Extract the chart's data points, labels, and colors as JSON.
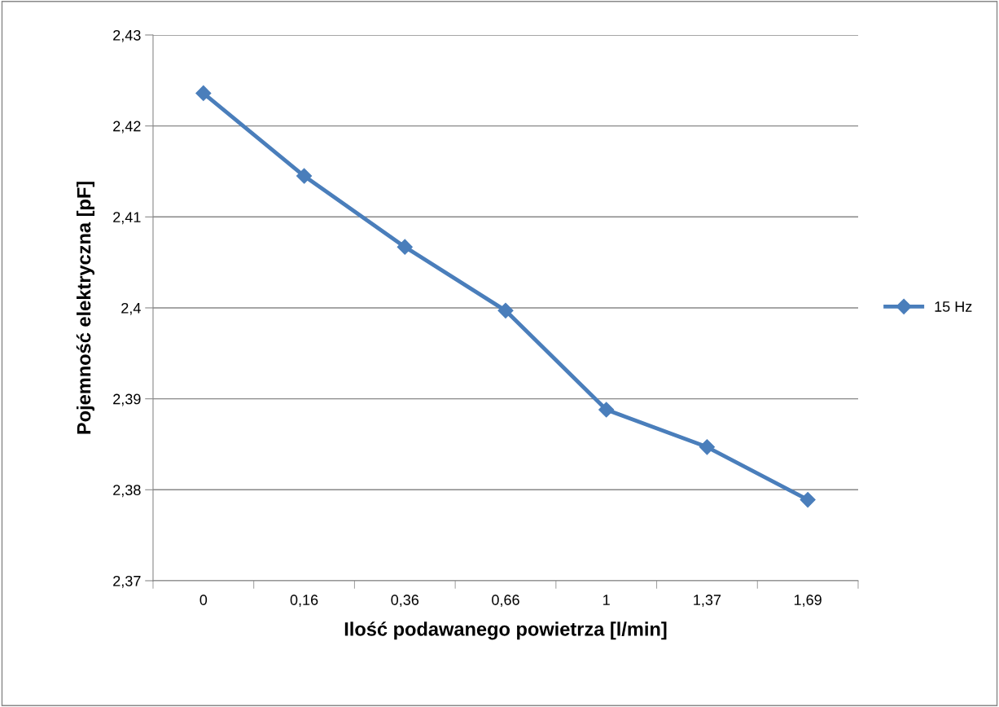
{
  "chart_data": {
    "type": "line",
    "xlabel": "Ilość podawanego powietrza [l/min]",
    "ylabel": "Pojemność elektryczna [pF]",
    "categories": [
      "0",
      "0,16",
      "0,36",
      "0,66",
      "1",
      "1,37",
      "1,69"
    ],
    "series": [
      {
        "name": "15 Hz",
        "color": "#4a7ebb",
        "values": [
          2.4236,
          2.4145,
          2.4067,
          2.3997,
          2.3888,
          2.3847,
          2.3789
        ]
      }
    ],
    "ylim": [
      2.37,
      2.43
    ],
    "yticks": [
      {
        "value": 2.37,
        "label": "2,37"
      },
      {
        "value": 2.38,
        "label": "2,38"
      },
      {
        "value": 2.39,
        "label": "2,39"
      },
      {
        "value": 2.4,
        "label": "2,4"
      },
      {
        "value": 2.41,
        "label": "2,41"
      },
      {
        "value": 2.42,
        "label": "2,42"
      },
      {
        "value": 2.43,
        "label": "2,43"
      }
    ],
    "grid": "y",
    "legend": "right",
    "marker": "diamond",
    "line_style": "solid"
  }
}
